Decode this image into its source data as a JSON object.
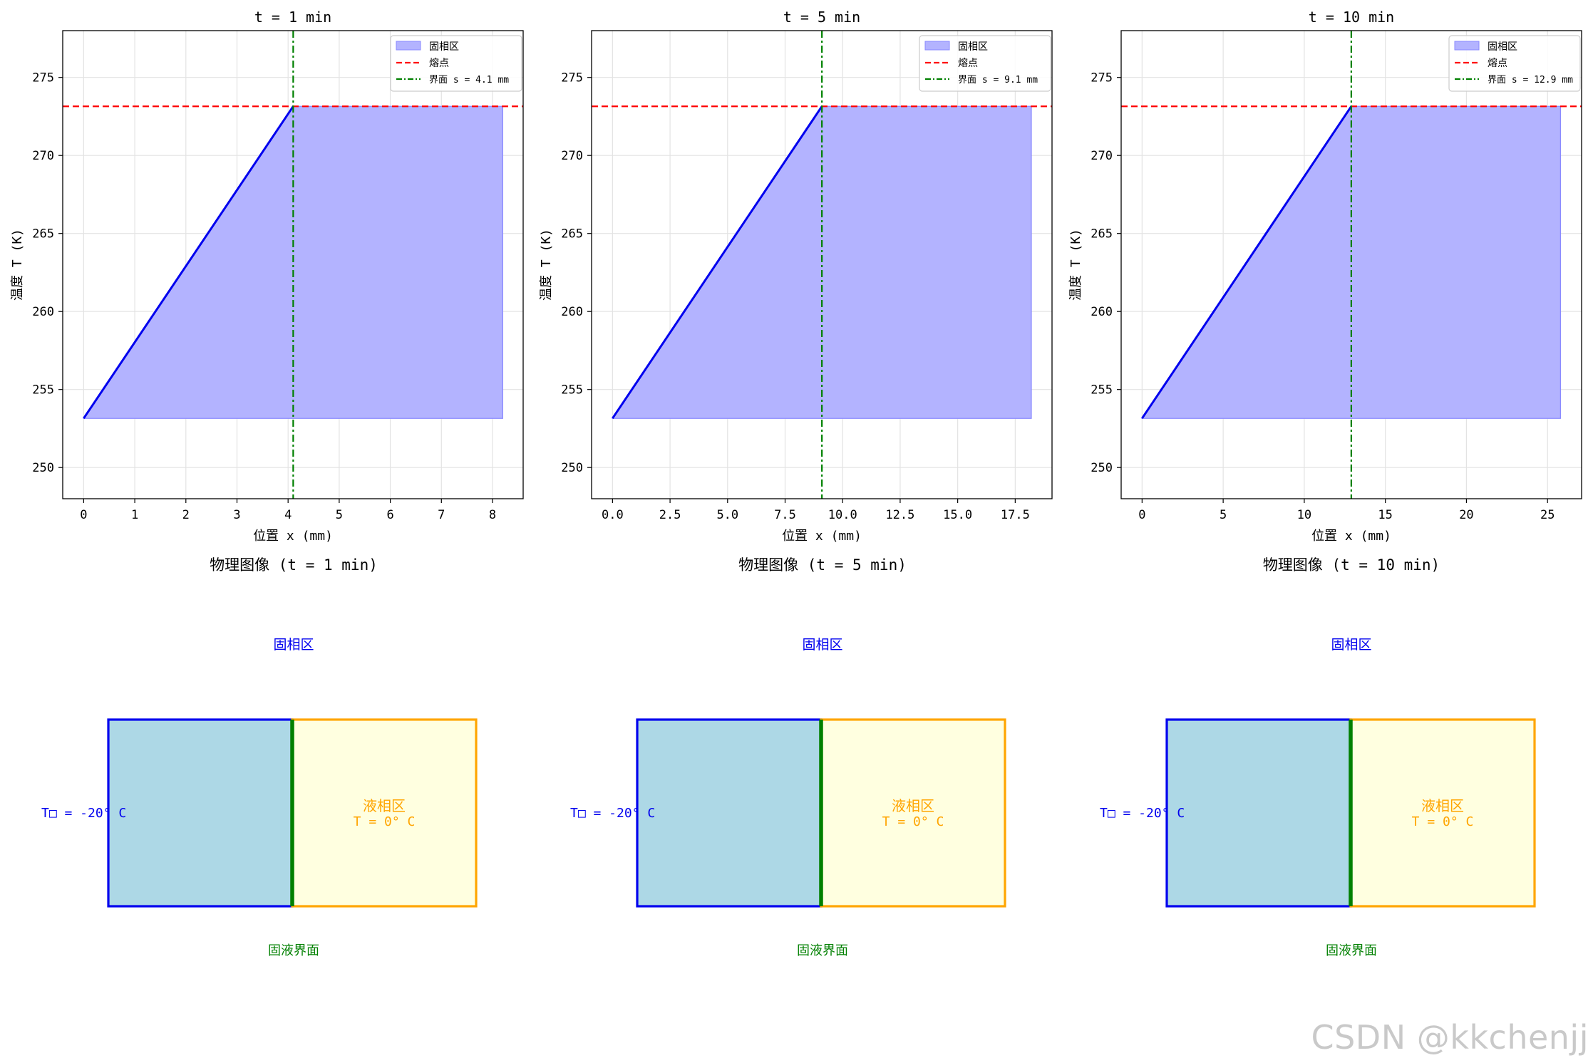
{
  "watermark": "CSDN @kkchenjj",
  "colors": {
    "line": "#0000ee",
    "fill": "#b3b3ff",
    "melt": "#ff0000",
    "interface": "#008000",
    "solid_fill": "#add8e6",
    "solid_border": "#0000ee",
    "liquid_fill": "#ffffe0",
    "liquid_border": "#ffa500"
  },
  "chart_data": [
    {
      "type": "line",
      "title": "t = 1 min",
      "xlabel": "位置 x (mm)",
      "ylabel": "温度 T (K)",
      "xlim": [
        -0.41,
        8.6
      ],
      "ylim": [
        248,
        278
      ],
      "xticks": [
        0,
        1,
        2,
        3,
        4,
        5,
        6,
        7,
        8
      ],
      "xtick_labels": [
        "0",
        "1",
        "2",
        "3",
        "4",
        "5",
        "6",
        "7",
        "8"
      ],
      "yticks": [
        250,
        255,
        260,
        265,
        270,
        275
      ],
      "grid": true,
      "legend_position": "upper right",
      "legend": [
        "固相区",
        "熔点",
        "界面 s = 4.1 mm"
      ],
      "series": [
        {
          "name": "temperature",
          "x": [
            0,
            4.1
          ],
          "y": [
            253.15,
            273.15
          ]
        }
      ],
      "fill": {
        "x_start": 0,
        "x_end": 8.2,
        "y_bottom": 253.15,
        "y_top": 273.15
      },
      "melting_point": 273.15,
      "interface_x": 4.1
    },
    {
      "type": "line",
      "title": "t = 5 min",
      "xlabel": "位置 x (mm)",
      "ylabel": "温度 T (K)",
      "xlim": [
        -0.91,
        19.1
      ],
      "ylim": [
        248,
        278
      ],
      "xticks": [
        0,
        2.5,
        5,
        7.5,
        10,
        12.5,
        15,
        17.5
      ],
      "xtick_labels": [
        "0.0",
        "2.5",
        "5.0",
        "7.5",
        "10.0",
        "12.5",
        "15.0",
        "17.5"
      ],
      "yticks": [
        250,
        255,
        260,
        265,
        270,
        275
      ],
      "grid": true,
      "legend_position": "upper right",
      "legend": [
        "固相区",
        "熔点",
        "界面 s = 9.1 mm"
      ],
      "series": [
        {
          "name": "temperature",
          "x": [
            0,
            9.1
          ],
          "y": [
            253.15,
            273.15
          ]
        }
      ],
      "fill": {
        "x_start": 0,
        "x_end": 18.2,
        "y_bottom": 253.15,
        "y_top": 273.15
      },
      "melting_point": 273.15,
      "interface_x": 9.1
    },
    {
      "type": "line",
      "title": "t = 10 min",
      "xlabel": "位置 x (mm)",
      "ylabel": "温度 T (K)",
      "xlim": [
        -1.29,
        27.1
      ],
      "ylim": [
        248,
        278
      ],
      "xticks": [
        0,
        5,
        10,
        15,
        20,
        25
      ],
      "xtick_labels": [
        "0",
        "5",
        "10",
        "15",
        "20",
        "25"
      ],
      "yticks": [
        250,
        255,
        260,
        265,
        270,
        275
      ],
      "grid": true,
      "legend_position": "upper right",
      "legend": [
        "固相区",
        "熔点",
        "界面 s = 12.9 mm"
      ],
      "series": [
        {
          "name": "temperature",
          "x": [
            0,
            12.9
          ],
          "y": [
            253.15,
            273.15
          ]
        }
      ],
      "fill": {
        "x_start": 0,
        "x_end": 25.8,
        "y_bottom": 253.15,
        "y_top": 273.15
      },
      "melting_point": 273.15,
      "interface_x": 12.9
    }
  ],
  "diagrams": [
    {
      "title": "物理图像 (t = 1 min)",
      "solid_label": "固相区",
      "liquid_label": "液相区",
      "liquid_temp": "T = 0° C",
      "solid_temp": "T□ = -20° C",
      "interface_label": "固液界面"
    },
    {
      "title": "物理图像 (t = 5 min)",
      "solid_label": "固相区",
      "liquid_label": "液相区",
      "liquid_temp": "T = 0° C",
      "solid_temp": "T□ = -20° C",
      "interface_label": "固液界面"
    },
    {
      "title": "物理图像 (t = 10 min)",
      "solid_label": "固相区",
      "liquid_label": "液相区",
      "liquid_temp": "T = 0° C",
      "solid_temp": "T□ = -20° C",
      "interface_label": "固液界面"
    }
  ]
}
